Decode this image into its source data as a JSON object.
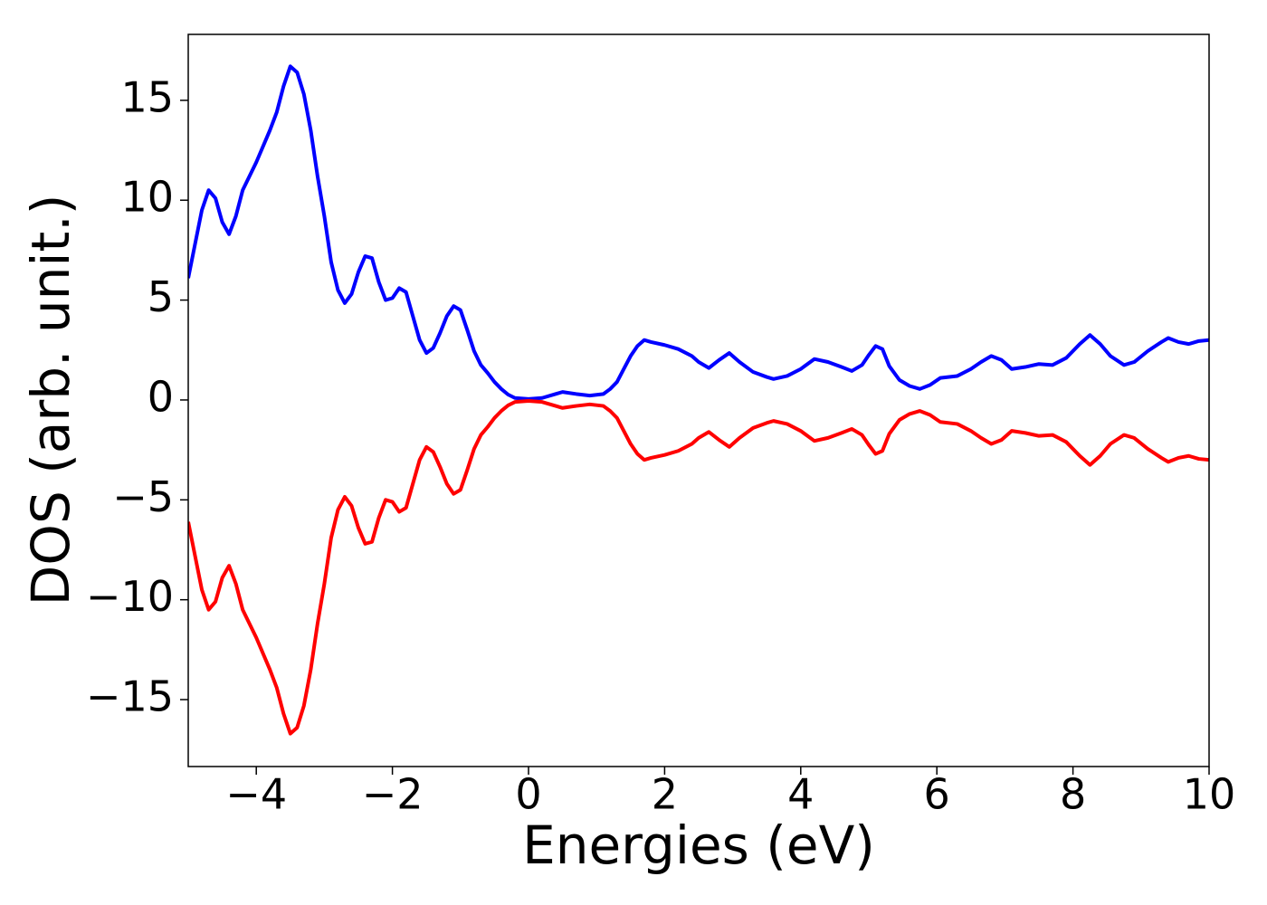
{
  "chart_data": {
    "type": "line",
    "xlabel": "Energies (eV)",
    "ylabel": "DOS (arb. unit.)",
    "x": [
      -5,
      -4.9,
      -4.8,
      -4.7,
      -4.6,
      -4.5,
      -4.4,
      -4.3,
      -4.2,
      -4.0,
      -3.8,
      -3.7,
      -3.6,
      -3.5,
      -3.4,
      -3.3,
      -3.2,
      -3.1,
      -3.0,
      -2.9,
      -2.8,
      -2.7,
      -2.6,
      -2.5,
      -2.4,
      -2.3,
      -2.2,
      -2.1,
      -2.0,
      -1.9,
      -1.8,
      -1.7,
      -1.6,
      -1.5,
      -1.4,
      -1.3,
      -1.2,
      -1.1,
      -1.0,
      -0.9,
      -0.8,
      -0.7,
      -0.6,
      -0.5,
      -0.4,
      -0.3,
      -0.2,
      0,
      0.2,
      0.4,
      0.5,
      0.7,
      0.9,
      1.1,
      1.2,
      1.3,
      1.4,
      1.5,
      1.6,
      1.7,
      1.8,
      2.0,
      2.2,
      2.4,
      2.5,
      2.65,
      2.8,
      2.95,
      3.1,
      3.3,
      3.5,
      3.6,
      3.8,
      4.0,
      4.2,
      4.4,
      4.6,
      4.75,
      4.9,
      5.0,
      5.1,
      5.2,
      5.3,
      5.45,
      5.6,
      5.75,
      5.9,
      6.05,
      6.3,
      6.5,
      6.65,
      6.8,
      6.95,
      7.1,
      7.3,
      7.5,
      7.7,
      7.9,
      8.1,
      8.25,
      8.4,
      8.55,
      8.75,
      8.9,
      9.1,
      9.3,
      9.4,
      9.55,
      9.7,
      9.85,
      10
    ],
    "series": [
      {
        "color": "#0000ff",
        "values": [
          6.1,
          7.8,
          9.5,
          10.5,
          10.1,
          8.9,
          8.3,
          9.2,
          10.5,
          11.9,
          13.5,
          14.4,
          15.7,
          16.7,
          16.4,
          15.3,
          13.5,
          11.2,
          9.2,
          6.9,
          5.5,
          4.85,
          5.3,
          6.4,
          7.2,
          7.1,
          5.9,
          5.0,
          5.1,
          5.6,
          5.4,
          4.2,
          3.0,
          2.35,
          2.6,
          3.35,
          4.2,
          4.7,
          4.5,
          3.5,
          2.45,
          1.75,
          1.35,
          0.9,
          0.55,
          0.27,
          0.1,
          0.05,
          0.1,
          0.3,
          0.4,
          0.3,
          0.22,
          0.3,
          0.55,
          0.9,
          1.55,
          2.2,
          2.7,
          3.0,
          2.9,
          2.75,
          2.55,
          2.2,
          1.9,
          1.6,
          2.0,
          2.35,
          1.9,
          1.4,
          1.15,
          1.05,
          1.2,
          1.55,
          2.05,
          1.9,
          1.65,
          1.45,
          1.75,
          2.25,
          2.7,
          2.55,
          1.7,
          1.0,
          0.7,
          0.55,
          0.75,
          1.1,
          1.2,
          1.55,
          1.9,
          2.2,
          2.0,
          1.55,
          1.65,
          1.8,
          1.75,
          2.1,
          2.8,
          3.25,
          2.8,
          2.2,
          1.75,
          1.9,
          2.45,
          2.9,
          3.1,
          2.9,
          2.8,
          2.95,
          3.0
        ]
      },
      {
        "color": "#ff0000",
        "values": [
          -6.1,
          -7.8,
          -9.5,
          -10.5,
          -10.1,
          -8.9,
          -8.3,
          -9.2,
          -10.5,
          -11.9,
          -13.5,
          -14.4,
          -15.7,
          -16.7,
          -16.4,
          -15.3,
          -13.5,
          -11.2,
          -9.2,
          -6.9,
          -5.5,
          -4.85,
          -5.3,
          -6.4,
          -7.2,
          -7.1,
          -5.9,
          -5.0,
          -5.1,
          -5.6,
          -5.4,
          -4.2,
          -3.0,
          -2.35,
          -2.6,
          -3.35,
          -4.2,
          -4.7,
          -4.5,
          -3.5,
          -2.45,
          -1.75,
          -1.35,
          -0.9,
          -0.55,
          -0.27,
          -0.1,
          -0.05,
          -0.1,
          -0.3,
          -0.4,
          -0.3,
          -0.22,
          -0.3,
          -0.55,
          -0.9,
          -1.55,
          -2.2,
          -2.7,
          -3.0,
          -2.9,
          -2.75,
          -2.55,
          -2.2,
          -1.9,
          -1.6,
          -2.0,
          -2.35,
          -1.9,
          -1.4,
          -1.15,
          -1.05,
          -1.2,
          -1.55,
          -2.05,
          -1.9,
          -1.65,
          -1.45,
          -1.75,
          -2.25,
          -2.7,
          -2.55,
          -1.7,
          -1.0,
          -0.7,
          -0.55,
          -0.75,
          -1.1,
          -1.2,
          -1.55,
          -1.9,
          -2.2,
          -2.0,
          -1.55,
          -1.65,
          -1.8,
          -1.75,
          -2.1,
          -2.8,
          -3.25,
          -2.8,
          -2.2,
          -1.75,
          -1.9,
          -2.45,
          -2.9,
          -3.1,
          -2.9,
          -2.8,
          -2.95,
          -3.0
        ]
      }
    ],
    "xlim": [
      -5,
      10
    ],
    "xticks": [
      {
        "value": -4,
        "label": "−4"
      },
      {
        "value": -2,
        "label": "−2"
      },
      0,
      2,
      4,
      6,
      8,
      10
    ],
    "ylim": [
      -18.35,
      18.3
    ],
    "yticks": [
      {
        "value": -15,
        "label": "−15"
      },
      {
        "value": -10,
        "label": "−10"
      },
      {
        "value": -5,
        "label": "−5"
      },
      0,
      5,
      10,
      15
    ],
    "grid": false
  }
}
